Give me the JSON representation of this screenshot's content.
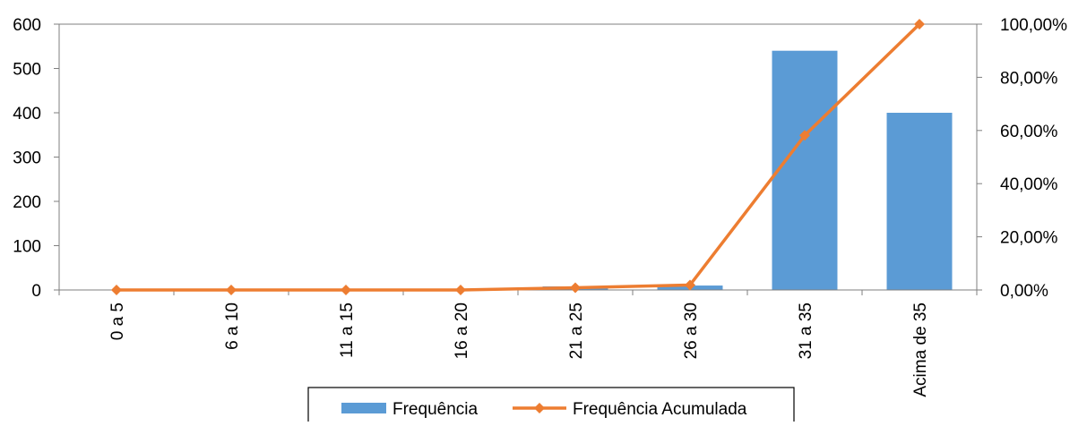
{
  "chart_data": {
    "type": "bar",
    "title": "",
    "categories": [
      "0 a 5",
      "6 a 10",
      "11 a 15",
      "16 a 20",
      "21 a 25",
      "26 a 30",
      "31 a 35",
      "Acima de 35"
    ],
    "series": [
      {
        "name": "Frequência",
        "type": "bar",
        "axis": "left",
        "color": "#5B9BD5",
        "values": [
          0,
          0,
          0,
          0,
          8,
          10,
          540,
          400
        ]
      },
      {
        "name": "Frequência Acumulada",
        "type": "line",
        "axis": "right",
        "color": "#ED7D31",
        "marker": "diamond",
        "values": [
          0.0,
          0.0,
          0.0,
          0.0,
          0.0083,
          0.0187,
          0.5816,
          1.0
        ]
      }
    ],
    "y_left": {
      "ylim": [
        0,
        600
      ],
      "ticks": [
        0,
        100,
        200,
        300,
        400,
        500,
        600
      ]
    },
    "y_right": {
      "ylim": [
        0,
        1
      ],
      "ticks": [
        0,
        0.2,
        0.4,
        0.6,
        0.8,
        1.0
      ],
      "tick_labels": [
        "0,00%",
        "20,00%",
        "40,00%",
        "60,00%",
        "80,00%",
        "100,00%"
      ]
    },
    "x_label_rotation": "vertical",
    "grid": false,
    "legend_position": "bottom"
  }
}
